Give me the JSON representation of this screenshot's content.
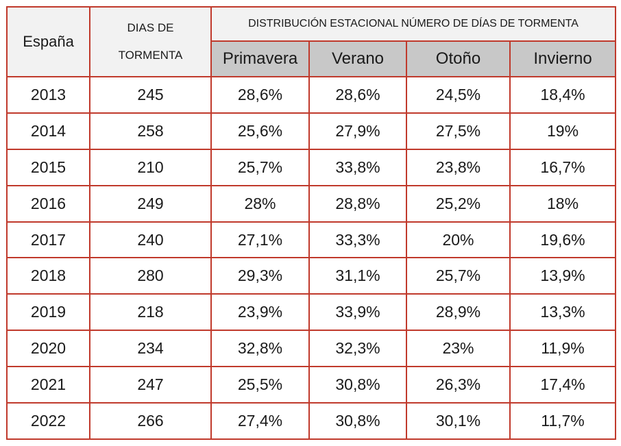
{
  "table": {
    "col_region": "España",
    "col_days_line1": "DIAS DE",
    "col_days_line2": "TORMENTA",
    "group_title": "DISTRIBUCIÓN ESTACIONAL NÚMERO DE DÍAS DE TORMENTA",
    "seasons": [
      "Primavera",
      "Verano",
      "Otoño",
      "Invierno"
    ]
  },
  "chart_data": {
    "type": "table",
    "columns": [
      "España",
      "DIAS DE TORMENTA",
      "Primavera",
      "Verano",
      "Otoño",
      "Invierno"
    ],
    "rows": [
      {
        "year": "2013",
        "days": "245",
        "primavera": "28,6%",
        "verano": "28,6%",
        "otono": "24,5%",
        "invierno": "18,4%"
      },
      {
        "year": "2014",
        "days": "258",
        "primavera": "25,6%",
        "verano": "27,9%",
        "otono": "27,5%",
        "invierno": "19%"
      },
      {
        "year": "2015",
        "days": "210",
        "primavera": "25,7%",
        "verano": "33,8%",
        "otono": "23,8%",
        "invierno": "16,7%"
      },
      {
        "year": "2016",
        "days": "249",
        "primavera": "28%",
        "verano": "28,8%",
        "otono": "25,2%",
        "invierno": "18%"
      },
      {
        "year": "2017",
        "days": "240",
        "primavera": "27,1%",
        "verano": "33,3%",
        "otono": "20%",
        "invierno": "19,6%"
      },
      {
        "year": "2018",
        "days": "280",
        "primavera": "29,3%",
        "verano": "31,1%",
        "otono": "25,7%",
        "invierno": "13,9%"
      },
      {
        "year": "2019",
        "days": "218",
        "primavera": "23,9%",
        "verano": "33,9%",
        "otono": "28,9%",
        "invierno": "13,3%"
      },
      {
        "year": "2020",
        "days": "234",
        "primavera": "32,8%",
        "verano": "32,3%",
        "otono": "23%",
        "invierno": "11,9%"
      },
      {
        "year": "2021",
        "days": "247",
        "primavera": "25,5%",
        "verano": "30,8%",
        "otono": "26,3%",
        "invierno": "17,4%"
      },
      {
        "year": "2022",
        "days": "266",
        "primavera": "27,4%",
        "verano": "30,8%",
        "otono": "30,1%",
        "invierno": "11,7%"
      }
    ]
  }
}
